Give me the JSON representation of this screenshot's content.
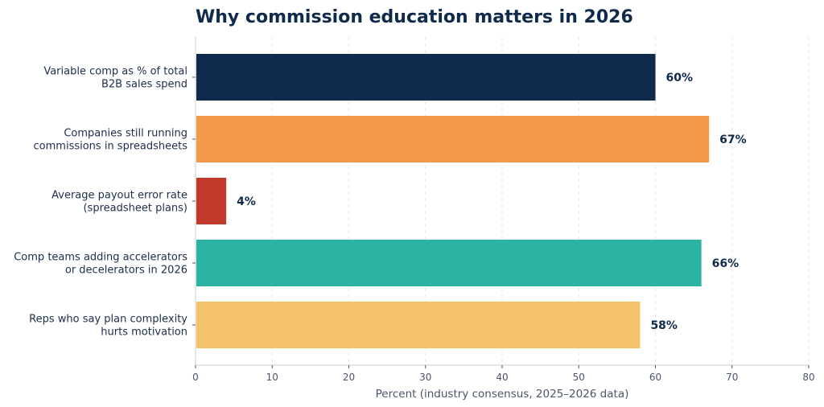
{
  "chart_data": {
    "type": "bar",
    "orientation": "horizontal",
    "title": "Why commission education matters in 2026",
    "xlabel": "Percent (industry consensus, 2025–2026 data)",
    "ylabel": "",
    "xlim": [
      0,
      80
    ],
    "xticks": [
      0,
      10,
      20,
      30,
      40,
      50,
      60,
      70,
      80
    ],
    "grid": "x-axis dashed",
    "categories": [
      [
        "Variable comp as % of total",
        "B2B sales spend"
      ],
      [
        "Companies still running",
        "commissions in spreadsheets"
      ],
      [
        "Average payout error rate",
        "(spreadsheet plans)"
      ],
      [
        "Comp teams adding accelerators",
        "or decelerators in 2026"
      ],
      [
        "Reps who say plan complexity",
        "hurts motivation"
      ]
    ],
    "values": [
      60,
      67,
      4,
      66,
      58
    ],
    "value_labels": [
      "60%",
      "67%",
      "4%",
      "66%",
      "58%"
    ],
    "colors": [
      "#0f2a4a",
      "#f2994a",
      "#c0392b",
      "#2bb3a3",
      "#f4c26b"
    ]
  }
}
